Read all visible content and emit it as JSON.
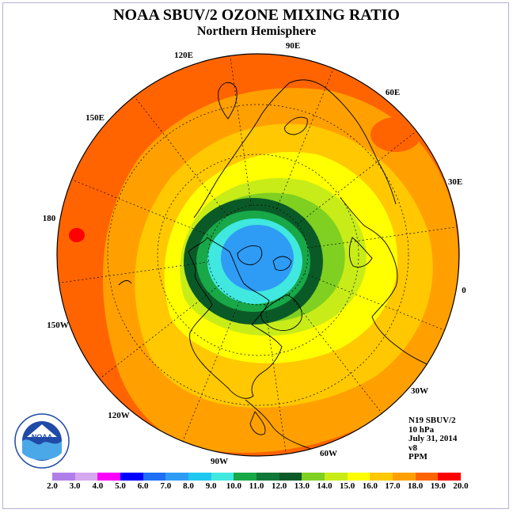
{
  "title": "NOAA SBUV/2 OZONE MIXING RATIO",
  "subtitle": "Northern Hemisphere",
  "info": {
    "line1": "N19 SBUV/2",
    "line2": "10 hPa",
    "line3": "July 31, 2014",
    "line4": "v8",
    "line5": "PPM"
  },
  "longitude_labels": [
    "90E",
    "60E",
    "30E",
    "0",
    "30W",
    "60W",
    "90W",
    "120W",
    "150W",
    "180",
    "150E",
    "120E"
  ],
  "logo_text": "NOAA",
  "colorbar": {
    "labels": [
      "2.0",
      "3.0",
      "4.0",
      "5.0",
      "6.0",
      "7.0",
      "8.0",
      "9.0",
      "10.0",
      "11.0",
      "12.0",
      "13.0",
      "14.0",
      "15.0",
      "16.0",
      "17.0",
      "18.0",
      "19.0",
      "20.0"
    ],
    "colors": [
      "#b07ee8",
      "#d6a8f0",
      "#ff00ff",
      "#0000ff",
      "#1e6ff5",
      "#2e9cf5",
      "#1ec8f0",
      "#40e8e0",
      "#18a848",
      "#107838",
      "#0a5a28",
      "#7fd020",
      "#c8ec18",
      "#ffff00",
      "#ffc800",
      "#ffa000",
      "#ff6400",
      "#ff0000",
      "#9b4a28"
    ]
  }
}
